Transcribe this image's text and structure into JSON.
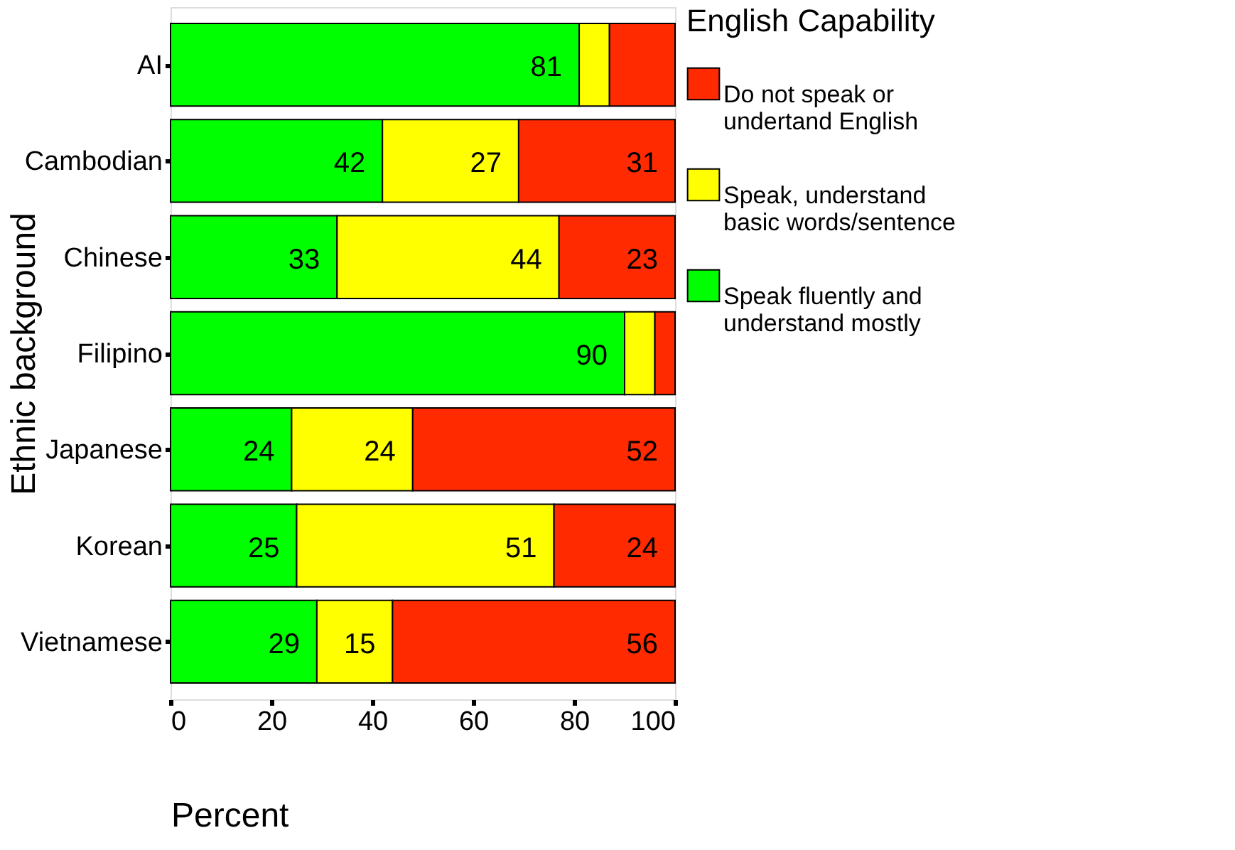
{
  "chart_data": {
    "type": "bar",
    "orientation": "horizontal",
    "stacked": true,
    "xlabel": "Percent",
    "ylabel": "Ethnic background",
    "legend_title": "English Capability",
    "legend": "right",
    "grid": false,
    "categories": [
      "AI",
      "Cambodian",
      "Chinese",
      "Filipino",
      "Japanese",
      "Korean",
      "Vietnamese"
    ],
    "xlim": [
      0,
      100
    ],
    "xticks": [
      0,
      20,
      40,
      60,
      80,
      100
    ],
    "series": [
      {
        "name": "Speak fluently and\nunderstand mostly",
        "color": "#00ff00",
        "values": [
          81,
          42,
          33,
          90,
          24,
          25,
          29
        ],
        "value_labels": [
          "81",
          "42",
          "33",
          "90",
          "24",
          "25",
          "29"
        ]
      },
      {
        "name": "Speak, understand\nbasic words/sentence",
        "color": "#ffff00",
        "values": [
          6,
          27,
          44,
          6,
          24,
          51,
          15
        ],
        "value_labels": [
          null,
          "27",
          "44",
          null,
          "24",
          "51",
          "15"
        ]
      },
      {
        "name": "Do not speak or\nundertand English",
        "color": "#ff2a00",
        "values": [
          13,
          31,
          23,
          4,
          52,
          24,
          56
        ],
        "value_labels": [
          null,
          "31",
          "23",
          null,
          "52",
          "24",
          "56"
        ]
      }
    ]
  }
}
